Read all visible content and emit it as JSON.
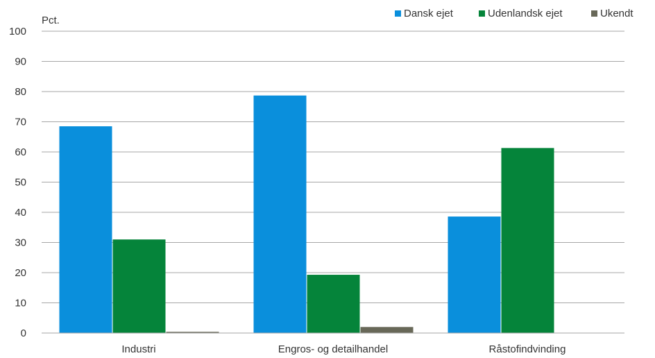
{
  "chart_data": {
    "type": "bar",
    "ylabel": "Pct.",
    "ylim": [
      0,
      100
    ],
    "yticks": [
      0,
      10,
      20,
      30,
      40,
      50,
      60,
      70,
      80,
      90,
      100
    ],
    "grid": true,
    "legend_position": "top-right",
    "categories": [
      "Industri",
      "Engros- og detailhandel",
      "Råstofindvinding"
    ],
    "series": [
      {
        "name": "Dansk ejet",
        "color": "#0a8fdc",
        "values": [
          68.5,
          78.7,
          38.6
        ]
      },
      {
        "name": "Udenlandsk ejet",
        "color": "#05843a",
        "values": [
          31.0,
          19.3,
          61.3
        ]
      },
      {
        "name": "Ukendt",
        "color": "#686858",
        "values": [
          0.4,
          2.0,
          0
        ]
      }
    ]
  }
}
